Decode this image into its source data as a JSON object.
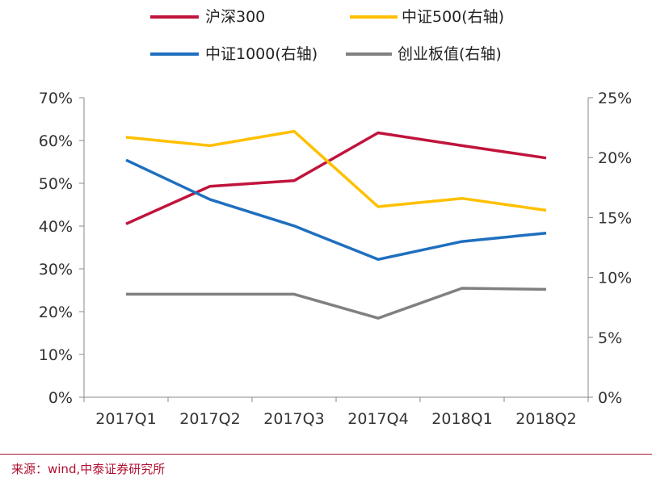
{
  "chart_data": {
    "type": "line",
    "categories": [
      "2017Q1",
      "2017Q2",
      "2017Q3",
      "2017Q4",
      "2018Q1",
      "2018Q2"
    ],
    "left_axis": {
      "ticks": [
        "0%",
        "10%",
        "20%",
        "30%",
        "40%",
        "50%",
        "60%",
        "70%"
      ],
      "ylim": [
        0,
        70
      ]
    },
    "right_axis": {
      "ticks": [
        "0%",
        "5%",
        "10%",
        "15%",
        "20%",
        "25%"
      ],
      "ylim": [
        0,
        25
      ]
    },
    "series": [
      {
        "name": "沪深300",
        "axis": "left",
        "color": "#c0143c",
        "values": [
          40.5,
          49.3,
          50.6,
          61.8,
          58.8,
          55.9
        ]
      },
      {
        "name": "中证500(右轴)",
        "axis": "right",
        "color": "#ffc000",
        "values": [
          21.7,
          21.0,
          22.2,
          15.9,
          16.6,
          15.6
        ]
      },
      {
        "name": "中证1000(右轴)",
        "axis": "right",
        "color": "#1f6fbf",
        "values": [
          19.8,
          16.5,
          14.3,
          11.5,
          13.0,
          13.7
        ]
      },
      {
        "name": "创业板值(右轴)",
        "axis": "right",
        "color": "#808080",
        "values": [
          8.6,
          8.6,
          8.6,
          6.6,
          9.1,
          9.0
        ]
      }
    ],
    "legend_placement": "top",
    "grid": false
  },
  "source_text": "来源：wind,中泰证券研究所"
}
